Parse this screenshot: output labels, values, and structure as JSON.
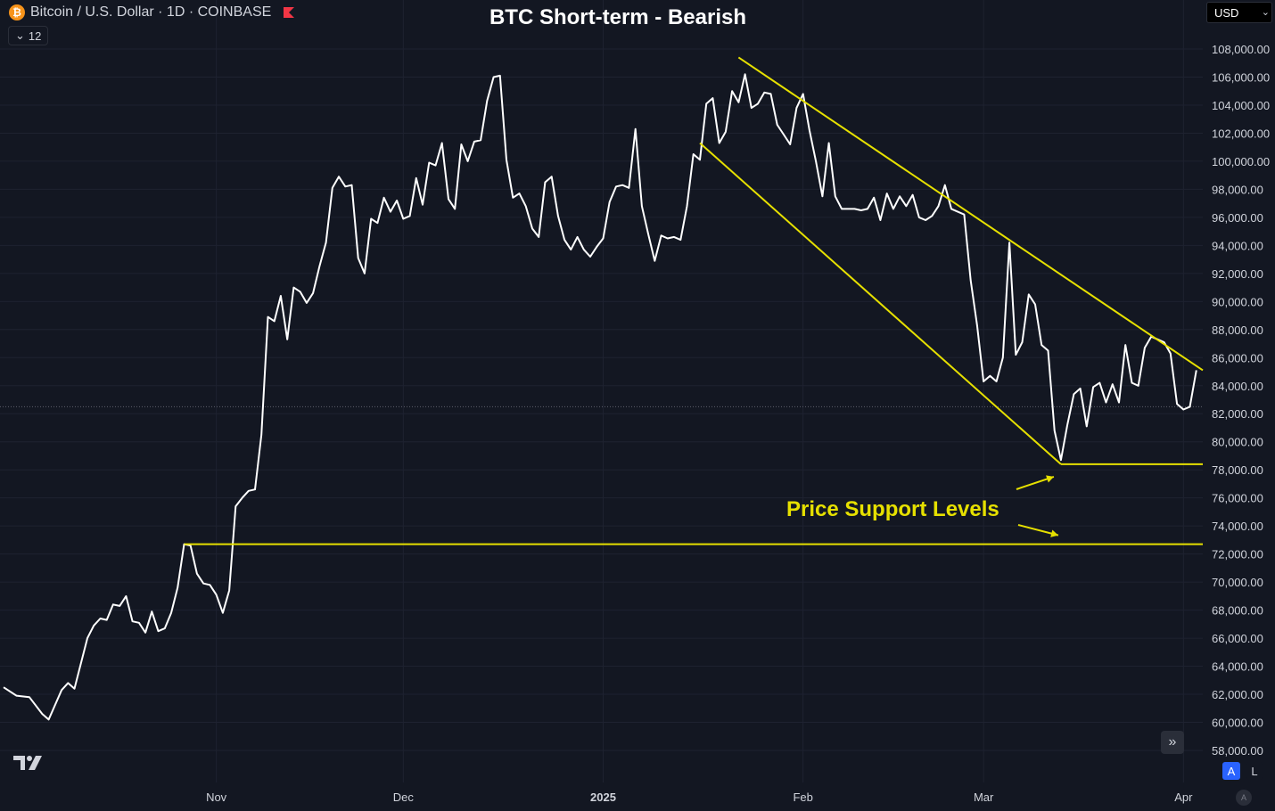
{
  "header": {
    "symbol": "Bitcoin / U.S. Dollar · 1D · COINBASE",
    "symbol_icon": "bitcoin-logo-icon",
    "flag_icon": "red-flag-icon",
    "indicator_count": "12"
  },
  "currency": {
    "selected": "USD"
  },
  "controls": {
    "auto_label": "A",
    "log_label": "L",
    "timezone_label": "A"
  },
  "colors": {
    "background": "#131722",
    "price_line": "#ffffff",
    "annotation": "#e6e000",
    "axis_text": "#d1d4dc",
    "accent": "#2962ff"
  },
  "chart_data": {
    "type": "line",
    "title": "BTC Short-term - Bearish",
    "series": [
      {
        "values": [
          [
            0,
            62500
          ],
          [
            2,
            61900
          ],
          [
            4,
            61800
          ],
          [
            6,
            60600
          ],
          [
            7,
            60200
          ],
          [
            9,
            62300
          ],
          [
            10,
            62800
          ],
          [
            11,
            62400
          ],
          [
            13,
            66000
          ],
          [
            14,
            66900
          ],
          [
            15,
            67400
          ],
          [
            16,
            67300
          ],
          [
            17,
            68400
          ],
          [
            18,
            68300
          ],
          [
            19,
            69000
          ],
          [
            20,
            67200
          ],
          [
            21,
            67100
          ],
          [
            22,
            66400
          ],
          [
            23,
            67900
          ],
          [
            24,
            66500
          ],
          [
            25,
            66700
          ],
          [
            26,
            67800
          ],
          [
            27,
            69600
          ],
          [
            28,
            72700
          ],
          [
            29,
            72600
          ],
          [
            30,
            70600
          ],
          [
            31,
            69900
          ],
          [
            32,
            69800
          ],
          [
            33,
            69100
          ],
          [
            34,
            67800
          ],
          [
            35,
            69400
          ],
          [
            36,
            75400
          ],
          [
            37,
            76000
          ],
          [
            38,
            76500
          ],
          [
            39,
            76600
          ],
          [
            40,
            80500
          ],
          [
            41,
            88900
          ],
          [
            42,
            88600
          ],
          [
            43,
            90400
          ],
          [
            44,
            87300
          ],
          [
            45,
            91000
          ],
          [
            46,
            90700
          ],
          [
            47,
            89900
          ],
          [
            48,
            90600
          ],
          [
            49,
            92500
          ],
          [
            50,
            94200
          ],
          [
            51,
            98100
          ],
          [
            52,
            98900
          ],
          [
            53,
            98200
          ],
          [
            54,
            98300
          ],
          [
            55,
            93100
          ],
          [
            56,
            92000
          ],
          [
            57,
            95900
          ],
          [
            58,
            95600
          ],
          [
            59,
            97400
          ],
          [
            60,
            96400
          ],
          [
            61,
            97200
          ],
          [
            62,
            95900
          ],
          [
            63,
            96100
          ],
          [
            64,
            98800
          ],
          [
            65,
            96900
          ],
          [
            66,
            99900
          ],
          [
            67,
            99700
          ],
          [
            68,
            101300
          ],
          [
            69,
            97300
          ],
          [
            70,
            96600
          ],
          [
            71,
            101200
          ],
          [
            72,
            100000
          ],
          [
            73,
            101400
          ],
          [
            74,
            101500
          ],
          [
            75,
            104300
          ],
          [
            76,
            106000
          ],
          [
            77,
            106100
          ],
          [
            78,
            100100
          ],
          [
            79,
            97400
          ],
          [
            80,
            97700
          ],
          [
            81,
            96800
          ],
          [
            82,
            95200
          ],
          [
            83,
            94600
          ],
          [
            84,
            98500
          ],
          [
            85,
            98900
          ],
          [
            86,
            96100
          ],
          [
            87,
            94400
          ],
          [
            88,
            93700
          ],
          [
            89,
            94600
          ],
          [
            90,
            93700
          ],
          [
            91,
            93200
          ],
          [
            92,
            93900
          ],
          [
            93,
            94500
          ],
          [
            94,
            97100
          ],
          [
            95,
            98200
          ],
          [
            96,
            98300
          ],
          [
            97,
            98100
          ],
          [
            98,
            102300
          ],
          [
            99,
            96800
          ],
          [
            100,
            94800
          ],
          [
            101,
            92900
          ],
          [
            102,
            94700
          ],
          [
            103,
            94500
          ],
          [
            104,
            94600
          ],
          [
            105,
            94400
          ],
          [
            106,
            96800
          ],
          [
            107,
            100500
          ],
          [
            108,
            100100
          ],
          [
            109,
            104100
          ],
          [
            110,
            104500
          ],
          [
            111,
            101300
          ],
          [
            112,
            102100
          ],
          [
            113,
            105000
          ],
          [
            114,
            104200
          ],
          [
            115,
            106200
          ],
          [
            116,
            103800
          ],
          [
            117,
            104100
          ],
          [
            118,
            104900
          ],
          [
            119,
            104800
          ],
          [
            120,
            102600
          ],
          [
            121,
            101900
          ],
          [
            122,
            101200
          ],
          [
            123,
            103800
          ],
          [
            124,
            104800
          ],
          [
            125,
            102200
          ],
          [
            126,
            100000
          ],
          [
            127,
            97500
          ],
          [
            128,
            101300
          ],
          [
            129,
            97500
          ],
          [
            130,
            96600
          ],
          [
            131,
            96600
          ],
          [
            132,
            96600
          ],
          [
            133,
            96500
          ],
          [
            134,
            96600
          ],
          [
            135,
            97400
          ],
          [
            136,
            95800
          ],
          [
            137,
            97700
          ],
          [
            138,
            96600
          ],
          [
            139,
            97500
          ],
          [
            140,
            96800
          ],
          [
            141,
            97600
          ],
          [
            142,
            96000
          ],
          [
            143,
            95800
          ],
          [
            144,
            96100
          ],
          [
            145,
            96800
          ],
          [
            146,
            98300
          ],
          [
            147,
            96600
          ],
          [
            148,
            96400
          ],
          [
            149,
            96200
          ],
          [
            150,
            91500
          ],
          [
            151,
            88300
          ],
          [
            152,
            84300
          ],
          [
            153,
            84700
          ],
          [
            154,
            84300
          ],
          [
            155,
            86000
          ],
          [
            156,
            94200
          ],
          [
            157,
            86200
          ],
          [
            158,
            87100
          ],
          [
            159,
            90500
          ],
          [
            160,
            89800
          ],
          [
            161,
            86900
          ],
          [
            162,
            86500
          ],
          [
            163,
            80800
          ],
          [
            164,
            78700
          ],
          [
            165,
            81200
          ],
          [
            166,
            83400
          ],
          [
            167,
            83800
          ],
          [
            168,
            81100
          ],
          [
            169,
            83900
          ],
          [
            170,
            84200
          ],
          [
            171,
            82800
          ],
          [
            172,
            84100
          ],
          [
            173,
            82800
          ],
          [
            174,
            86900
          ],
          [
            175,
            84200
          ],
          [
            176,
            84000
          ],
          [
            177,
            86700
          ],
          [
            178,
            87500
          ],
          [
            179,
            87300
          ],
          [
            180,
            87100
          ],
          [
            181,
            86300
          ],
          [
            182,
            82700
          ],
          [
            183,
            82300
          ],
          [
            184,
            82500
          ],
          [
            185,
            85100
          ]
        ]
      }
    ],
    "x_axis": {
      "tick_labels": [
        "Nov",
        "Dec",
        "2025",
        "Feb",
        "Mar",
        "Apr"
      ],
      "tick_positions": [
        33,
        62,
        93,
        124,
        152,
        183
      ],
      "range": [
        0,
        186
      ]
    },
    "y_axis": {
      "min": 57000,
      "max": 109000,
      "ticks": [
        "58,000.00",
        "60,000.00",
        "62,000.00",
        "64,000.00",
        "66,000.00",
        "68,000.00",
        "70,000.00",
        "72,000.00",
        "74,000.00",
        "76,000.00",
        "78,000.00",
        "80,000.00",
        "82,000.00",
        "84,000.00",
        "86,000.00",
        "88,000.00",
        "90,000.00",
        "92,000.00",
        "94,000.00",
        "96,000.00",
        "98,000.00",
        "100,000.00",
        "102,000.00",
        "104,000.00",
        "106,000.00",
        "108,000.00"
      ],
      "position": "right"
    },
    "current_price_line": 82500,
    "annotations": {
      "label": "Price Support Levels",
      "support_levels": [
        {
          "from_x": 164,
          "to_x": 186,
          "y": 78400
        },
        {
          "from_x": 28,
          "to_x": 186,
          "y": 72700
        }
      ],
      "trend_lines": [
        {
          "from": [
            114,
            107400
          ],
          "to": [
            186,
            85100
          ]
        },
        {
          "from": [
            108,
            101300
          ],
          "to": [
            164,
            78400
          ]
        }
      ]
    },
    "grid": true,
    "legend": "none"
  }
}
